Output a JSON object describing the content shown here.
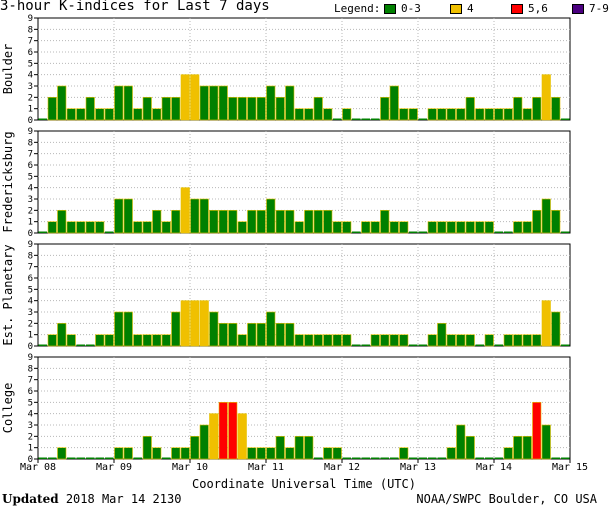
{
  "title": "3-hour K-indices for Last 7 days",
  "legend": {
    "label": "Legend:",
    "items": [
      {
        "label": "0-3",
        "color": "#008000"
      },
      {
        "label": "4",
        "color": "#f0c000"
      },
      {
        "label": "5,6",
        "color": "#ff0000"
      },
      {
        "label": "7-9",
        "color": "#4b0080"
      }
    ]
  },
  "footer": {
    "updated_label": "Updated",
    "updated_value": "2018 Mar 14 2130",
    "source": "NOAA/SWPC Boulder, CO USA"
  },
  "colors": {
    "green": "#008000",
    "yellow": "#f0c000",
    "red": "#ff0000",
    "purple": "#4b0080",
    "grid": "#b8b8b8"
  },
  "chart_data": [
    {
      "type": "bar",
      "title": "Boulder",
      "ylabel": "Boulder",
      "ylim": [
        0,
        9
      ],
      "yticks": [
        "0",
        "1",
        "2",
        "3",
        "4",
        "5",
        "6",
        "7",
        "8",
        "9"
      ],
      "x_start": "Mar 08",
      "interval_hours": 3,
      "values": [
        0,
        2,
        3,
        1,
        1,
        2,
        1,
        1,
        3,
        3,
        1,
        2,
        1,
        2,
        2,
        4,
        4,
        3,
        3,
        3,
        2,
        2,
        2,
        2,
        3,
        2,
        3,
        1,
        1,
        2,
        1,
        0,
        1,
        0,
        0,
        0,
        2,
        3,
        1,
        1,
        0,
        1,
        1,
        1,
        1,
        2,
        1,
        1,
        1,
        1,
        2,
        1,
        2,
        4,
        2,
        0
      ]
    },
    {
      "type": "bar",
      "title": "Fredericksburg",
      "ylabel": "Fredericksburg",
      "ylim": [
        0,
        9
      ],
      "yticks": [
        "0",
        "1",
        "2",
        "3",
        "4",
        "5",
        "6",
        "7",
        "8",
        "9"
      ],
      "x_start": "Mar 08",
      "interval_hours": 3,
      "values": [
        0,
        1,
        2,
        1,
        1,
        1,
        1,
        0,
        3,
        3,
        1,
        1,
        2,
        1,
        2,
        4,
        3,
        3,
        2,
        2,
        2,
        1,
        2,
        2,
        3,
        2,
        2,
        1,
        2,
        2,
        2,
        1,
        1,
        0,
        1,
        1,
        2,
        1,
        1,
        0,
        0,
        1,
        1,
        1,
        1,
        1,
        1,
        1,
        0,
        0,
        1,
        1,
        2,
        3,
        2,
        0
      ]
    },
    {
      "type": "bar",
      "title": "Est. Planetary",
      "ylabel": "Est. Planetary",
      "ylim": [
        0,
        9
      ],
      "yticks": [
        "0",
        "1",
        "2",
        "3",
        "4",
        "5",
        "6",
        "7",
        "8",
        "9"
      ],
      "x_start": "Mar 08",
      "interval_hours": 3,
      "values": [
        0,
        1,
        2,
        1,
        0,
        0,
        1,
        1,
        3,
        3,
        1,
        1,
        1,
        1,
        3,
        4,
        4,
        4,
        3,
        2,
        2,
        1,
        2,
        2,
        3,
        2,
        2,
        1,
        1,
        1,
        1,
        1,
        1,
        0,
        0,
        1,
        1,
        1,
        1,
        0,
        0,
        1,
        2,
        1,
        1,
        1,
        0,
        1,
        0,
        1,
        1,
        1,
        1,
        4,
        3,
        0
      ]
    },
    {
      "type": "bar",
      "title": "College",
      "ylabel": "College",
      "ylim": [
        0,
        9
      ],
      "yticks": [
        "0",
        "1",
        "2",
        "3",
        "4",
        "5",
        "6",
        "7",
        "8",
        "9"
      ],
      "x_start": "Mar 08",
      "interval_hours": 3,
      "values": [
        0,
        0,
        1,
        0,
        0,
        0,
        0,
        0,
        1,
        1,
        0,
        2,
        1,
        0,
        1,
        1,
        2,
        3,
        4,
        5,
        5,
        4,
        1,
        1,
        1,
        2,
        1,
        2,
        2,
        0,
        1,
        1,
        0,
        0,
        0,
        0,
        0,
        0,
        1,
        0,
        0,
        0,
        0,
        1,
        3,
        2,
        0,
        0,
        0,
        1,
        2,
        2,
        5,
        3,
        0,
        0
      ]
    }
  ],
  "xaxis": {
    "label": "Coordinate Universal Time (UTC)",
    "ticks": [
      "Mar 08",
      "Mar 09",
      "Mar 10",
      "Mar 11",
      "Mar 12",
      "Mar 13",
      "Mar 14",
      "Mar 15"
    ]
  }
}
